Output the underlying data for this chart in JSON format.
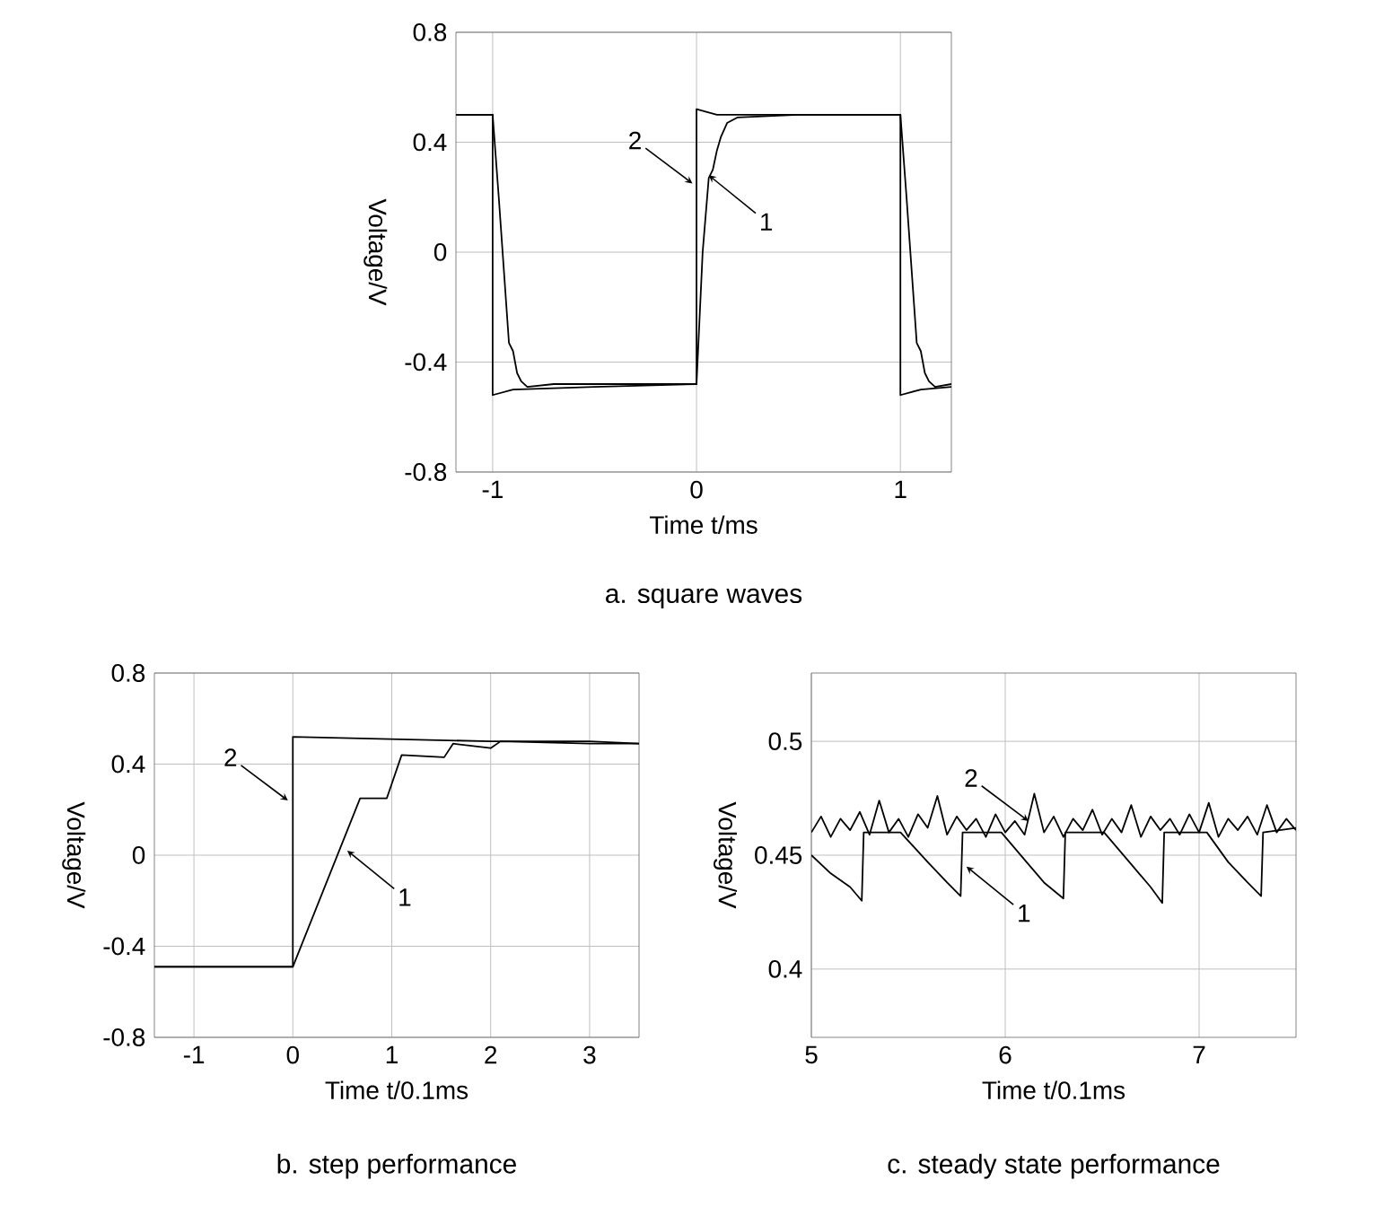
{
  "chart_data": [
    {
      "type": "line",
      "title": "a. square waves",
      "xlabel": "Time t/ms",
      "ylabel": "Voltage/V",
      "xlim": [
        -1.18,
        1.25
      ],
      "ylim": [
        -0.8,
        0.8
      ],
      "xticks": [
        -1,
        0,
        1
      ],
      "yticks": [
        -0.8,
        -0.4,
        0,
        0.4,
        0.8
      ],
      "grid": true,
      "series": [
        {
          "color": "#000000",
          "x": [
            -1.18,
            -1.0,
            -0.97,
            -0.92,
            -0.9,
            -0.88,
            -0.86,
            -0.83,
            -0.7,
            -0.4,
            -0.1,
            0,
            0.03,
            0.06,
            0.08,
            0.1,
            0.12,
            0.15,
            0.2,
            0.5,
            0.8,
            1.0,
            1.03,
            1.08,
            1.1,
            1.12,
            1.14,
            1.17,
            1.25
          ],
          "values": [
            0.5,
            0.5,
            0.2,
            -0.33,
            -0.36,
            -0.44,
            -0.47,
            -0.49,
            -0.48,
            -0.48,
            -0.48,
            -0.48,
            0.0,
            0.27,
            0.3,
            0.37,
            0.42,
            0.47,
            0.49,
            0.5,
            0.5,
            0.5,
            0.2,
            -0.33,
            -0.36,
            -0.44,
            -0.47,
            -0.49,
            -0.48
          ]
        },
        {
          "color": "#000000",
          "x": [
            -1.18,
            -1.0,
            -1.0,
            -0.9,
            -0.5,
            0,
            0,
            0.1,
            0.5,
            1.0,
            1.0,
            1.1,
            1.25
          ],
          "values": [
            0.5,
            0.5,
            -0.52,
            -0.5,
            -0.49,
            -0.48,
            0.52,
            0.5,
            0.5,
            0.5,
            -0.52,
            -0.5,
            -0.49
          ]
        }
      ],
      "annotations": [
        {
          "text": "2",
          "x": -0.02,
          "y": 0.25
        },
        {
          "text": "1",
          "x": 0.06,
          "y": 0.28
        }
      ]
    },
    {
      "type": "line",
      "title": "b. step performance",
      "xlabel": "Time t/0.1ms",
      "ylabel": "Voltage/V",
      "xlim": [
        -1.4,
        3.5
      ],
      "ylim": [
        -0.8,
        0.8
      ],
      "xticks": [
        -1,
        0,
        1,
        2,
        3
      ],
      "yticks": [
        -0.8,
        -0.4,
        0,
        0.4,
        0.8
      ],
      "grid": true,
      "series": [
        {
          "color": "#000000",
          "x": [
            -1.4,
            -0.5,
            0,
            0.68,
            0.95,
            1.1,
            1.53,
            1.62,
            2.0,
            2.1,
            3.0,
            3.5
          ],
          "values": [
            -0.49,
            -0.49,
            -0.49,
            0.25,
            0.25,
            0.44,
            0.43,
            0.49,
            0.47,
            0.5,
            0.49,
            0.49
          ]
        },
        {
          "color": "#000000",
          "x": [
            -1.4,
            0,
            0,
            1,
            2,
            3,
            3.5
          ],
          "values": [
            -0.49,
            -0.49,
            0.52,
            0.51,
            0.5,
            0.5,
            0.49
          ]
        }
      ],
      "annotations": [
        {
          "text": "2",
          "x": -0.05,
          "y": 0.24
        },
        {
          "text": "1",
          "x": 0.55,
          "y": 0.02
        }
      ]
    },
    {
      "type": "line",
      "title": "c. steady state performance",
      "xlabel": "Time t/0.1ms",
      "ylabel": "Voltage/V",
      "xlim": [
        5,
        7.5
      ],
      "ylim": [
        0.37,
        0.53
      ],
      "xticks": [
        5,
        6,
        7
      ],
      "yticks": [
        0.4,
        0.45,
        0.5
      ],
      "grid": true,
      "series": [
        {
          "color": "#000000",
          "x": [
            5.0,
            5.1,
            5.2,
            5.26,
            5.27,
            5.46,
            5.6,
            5.7,
            5.77,
            5.78,
            5.98,
            6.1,
            6.2,
            6.3,
            6.31,
            6.51,
            6.65,
            6.75,
            6.81,
            6.82,
            7.04,
            7.15,
            7.25,
            7.32,
            7.33,
            7.5
          ],
          "values": [
            0.45,
            0.442,
            0.436,
            0.43,
            0.46,
            0.46,
            0.447,
            0.438,
            0.432,
            0.46,
            0.46,
            0.448,
            0.438,
            0.431,
            0.46,
            0.46,
            0.446,
            0.436,
            0.429,
            0.46,
            0.46,
            0.447,
            0.438,
            0.432,
            0.46,
            0.462
          ]
        },
        {
          "color": "#000000",
          "x": [
            5,
            5.05,
            5.1,
            5.15,
            5.2,
            5.25,
            5.3,
            5.35,
            5.4,
            5.45,
            5.5,
            5.55,
            5.6,
            5.65,
            5.7,
            5.75,
            5.8,
            5.85,
            5.9,
            5.95,
            6,
            6.05,
            6.1,
            6.15,
            6.2,
            6.25,
            6.3,
            6.35,
            6.4,
            6.45,
            6.5,
            6.55,
            6.6,
            6.65,
            6.7,
            6.75,
            6.8,
            6.85,
            6.9,
            6.95,
            7,
            7.05,
            7.1,
            7.15,
            7.2,
            7.25,
            7.3,
            7.35,
            7.4,
            7.45,
            7.5
          ],
          "values": [
            0.46,
            0.467,
            0.458,
            0.466,
            0.461,
            0.469,
            0.459,
            0.474,
            0.46,
            0.466,
            0.458,
            0.468,
            0.462,
            0.476,
            0.459,
            0.467,
            0.461,
            0.466,
            0.458,
            0.468,
            0.46,
            0.465,
            0.459,
            0.477,
            0.46,
            0.467,
            0.458,
            0.466,
            0.461,
            0.47,
            0.459,
            0.466,
            0.46,
            0.472,
            0.458,
            0.467,
            0.461,
            0.466,
            0.459,
            0.468,
            0.46,
            0.473,
            0.458,
            0.466,
            0.461,
            0.467,
            0.459,
            0.472,
            0.46,
            0.466,
            0.461
          ]
        }
      ],
      "annotations": [
        {
          "text": "2",
          "x": 6.12,
          "y": 0.465
        },
        {
          "text": "1",
          "x": 5.8,
          "y": 0.445
        }
      ]
    }
  ]
}
